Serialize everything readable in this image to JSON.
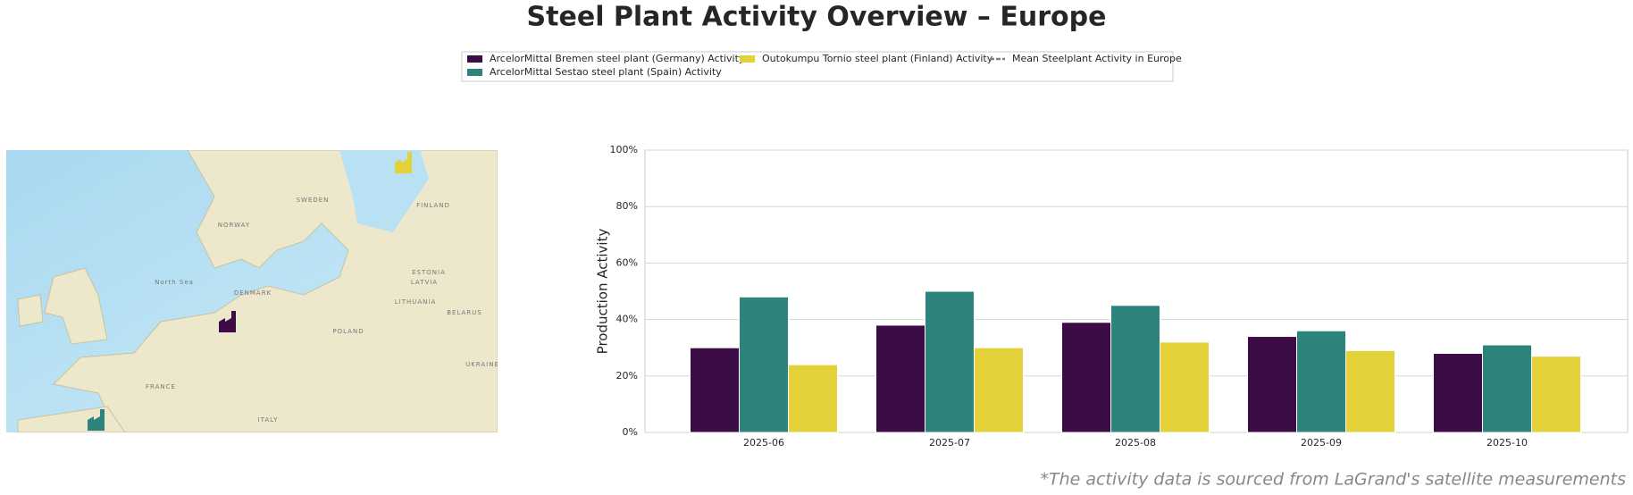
{
  "chart_data": {
    "type": "bar",
    "title": "Steel Plant Activity Overview – Europe",
    "y_label": "Production Activity",
    "footnote": "*The activity data is sourced from LaGrand's satellite measurements",
    "categories": [
      "2025-06",
      "2025-07",
      "2025-08",
      "2025-09",
      "2025-10"
    ],
    "series": [
      {
        "name": "ArcelorMittal Bremen steel plant (Germany) Activity",
        "color": "#3d0b46",
        "values": [
          30,
          38,
          39,
          34,
          28
        ]
      },
      {
        "name": "ArcelorMittal Sestao steel plant (Spain) Activity",
        "color": "#2c847d",
        "values": [
          48,
          50,
          45,
          36,
          31
        ]
      },
      {
        "name": "Outokumpu Tornio steel plant (Finland) Activity",
        "color": "#e3d13a",
        "values": [
          24,
          30,
          32,
          29,
          27
        ]
      }
    ],
    "legend_extra": [
      {
        "name": "Mean Steelplant Activity in Europe",
        "color": "#808080",
        "dashed": true
      }
    ],
    "ylim": [
      0,
      100
    ],
    "yticks": [
      {
        "value": 0,
        "label": "0%"
      },
      {
        "value": 20,
        "label": "20%"
      },
      {
        "value": 40,
        "label": "40%"
      },
      {
        "value": 60,
        "label": "60%"
      },
      {
        "value": 80,
        "label": "80%"
      },
      {
        "value": 100,
        "label": "100%"
      }
    ],
    "grid": true,
    "map": {
      "labels": [
        "SWEDEN",
        "NORWAY",
        "FINLAND",
        "DENMARK",
        "North Sea",
        "POLAND",
        "FRANCE",
        "UKRAINE",
        "ESTONIA",
        "LATVIA",
        "LITHUANIA",
        "BELARUS",
        "ITALY"
      ]
    }
  }
}
